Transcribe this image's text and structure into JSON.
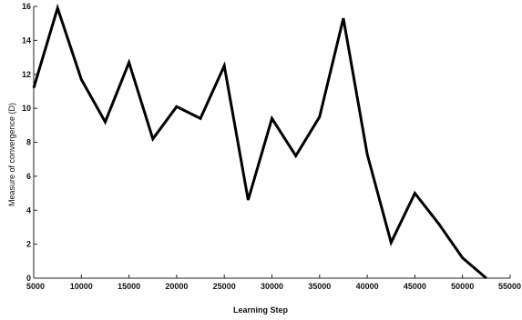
{
  "chart_data": {
    "type": "line",
    "title": "",
    "xlabel": "Learning Step",
    "ylabel": "Measure of convergence (D)",
    "xlim": [
      5000,
      55000
    ],
    "ylim": [
      0,
      16
    ],
    "xticks": [
      "5000",
      "10000",
      "15000",
      "20000",
      "25000",
      "30000",
      "35000",
      "40000",
      "45000",
      "50000",
      "55000"
    ],
    "yticks": [
      "0",
      "2",
      "4",
      "6",
      "8",
      "10",
      "12",
      "14",
      "16"
    ],
    "grid": false,
    "series": [
      {
        "x": [
          5000,
          7500,
          10000,
          12500,
          15000,
          17500,
          20000,
          22500,
          25000,
          27500,
          30000,
          32500,
          35000,
          37500,
          40000,
          42500,
          45000,
          47500,
          50000,
          52500
        ],
        "y": [
          11.2,
          15.9,
          11.7,
          9.2,
          12.7,
          8.2,
          10.1,
          9.4,
          12.5,
          4.6,
          9.4,
          7.2,
          9.5,
          15.3,
          7.3,
          2.1,
          5.0,
          3.2,
          1.2,
          0.0
        ]
      }
    ]
  }
}
